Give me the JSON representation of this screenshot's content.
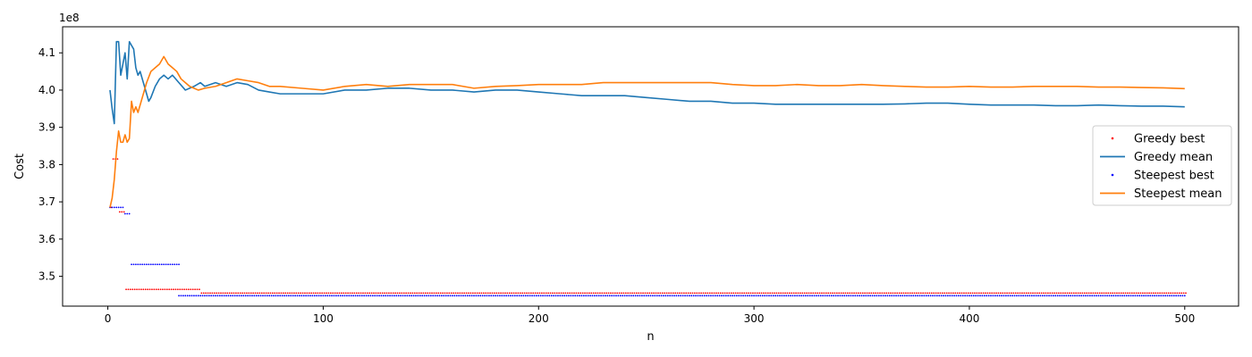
{
  "chart_data": {
    "type": "line",
    "xlabel": "n",
    "ylabel": "Cost",
    "y_offset_label": "1e8",
    "xlim": [
      -21,
      525
    ],
    "ylim": [
      3.42,
      4.17
    ],
    "x_ticks": [
      0,
      100,
      200,
      300,
      400,
      500
    ],
    "y_ticks": [
      3.5,
      3.6,
      3.7,
      3.8,
      3.9,
      4.0,
      4.1
    ],
    "grid": false,
    "legend_position": "center-right",
    "series": [
      {
        "name": "Greedy best",
        "style": "points",
        "color": "#ff0000",
        "segments": [
          {
            "x_start": 1,
            "x_end": 1,
            "y": 3.685
          },
          {
            "x_start": 2,
            "x_end": 4,
            "y": 3.815
          },
          {
            "x_start": 5,
            "x_end": 7,
            "y": 3.673
          },
          {
            "x_start": 8,
            "x_end": 42,
            "y": 3.465
          },
          {
            "x_start": 43,
            "x_end": 500,
            "y": 3.455
          }
        ]
      },
      {
        "name": "Greedy mean",
        "style": "line",
        "color": "#1f77b4",
        "points": [
          [
            1,
            4.0
          ],
          [
            2,
            3.95
          ],
          [
            3,
            3.91
          ],
          [
            4,
            4.13
          ],
          [
            5,
            4.13
          ],
          [
            6,
            4.04
          ],
          [
            7,
            4.07
          ],
          [
            8,
            4.1
          ],
          [
            9,
            4.03
          ],
          [
            10,
            4.13
          ],
          [
            11,
            4.12
          ],
          [
            12,
            4.11
          ],
          [
            13,
            4.06
          ],
          [
            14,
            4.04
          ],
          [
            15,
            4.05
          ],
          [
            16,
            4.03
          ],
          [
            17,
            4.01
          ],
          [
            18,
            3.99
          ],
          [
            19,
            3.97
          ],
          [
            20,
            3.98
          ],
          [
            22,
            4.01
          ],
          [
            24,
            4.03
          ],
          [
            26,
            4.04
          ],
          [
            28,
            4.03
          ],
          [
            30,
            4.04
          ],
          [
            33,
            4.02
          ],
          [
            36,
            4.0
          ],
          [
            40,
            4.01
          ],
          [
            43,
            4.02
          ],
          [
            45,
            4.01
          ],
          [
            50,
            4.02
          ],
          [
            55,
            4.01
          ],
          [
            60,
            4.02
          ],
          [
            65,
            4.015
          ],
          [
            70,
            4.0
          ],
          [
            75,
            3.995
          ],
          [
            80,
            3.99
          ],
          [
            90,
            3.99
          ],
          [
            100,
            3.99
          ],
          [
            110,
            4.0
          ],
          [
            120,
            4.0
          ],
          [
            130,
            4.005
          ],
          [
            140,
            4.005
          ],
          [
            150,
            4.0
          ],
          [
            160,
            4.0
          ],
          [
            170,
            3.995
          ],
          [
            180,
            4.0
          ],
          [
            190,
            4.0
          ],
          [
            200,
            3.995
          ],
          [
            210,
            3.99
          ],
          [
            220,
            3.985
          ],
          [
            230,
            3.985
          ],
          [
            240,
            3.985
          ],
          [
            250,
            3.98
          ],
          [
            260,
            3.975
          ],
          [
            270,
            3.97
          ],
          [
            280,
            3.97
          ],
          [
            290,
            3.965
          ],
          [
            300,
            3.965
          ],
          [
            310,
            3.962
          ],
          [
            320,
            3.962
          ],
          [
            330,
            3.962
          ],
          [
            340,
            3.962
          ],
          [
            350,
            3.962
          ],
          [
            360,
            3.962
          ],
          [
            370,
            3.963
          ],
          [
            380,
            3.965
          ],
          [
            390,
            3.965
          ],
          [
            400,
            3.962
          ],
          [
            410,
            3.96
          ],
          [
            420,
            3.96
          ],
          [
            430,
            3.96
          ],
          [
            440,
            3.958
          ],
          [
            450,
            3.958
          ],
          [
            460,
            3.96
          ],
          [
            470,
            3.958
          ],
          [
            480,
            3.957
          ],
          [
            490,
            3.957
          ],
          [
            500,
            3.955
          ]
        ]
      },
      {
        "name": "Steepest best",
        "style": "points",
        "color": "#0000ff",
        "segments": [
          {
            "x_start": 1,
            "x_end": 7,
            "y": 3.685
          },
          {
            "x_start": 8,
            "x_end": 10,
            "y": 3.668
          },
          {
            "x_start": 11,
            "x_end": 33,
            "y": 3.532
          },
          {
            "x_start": 33,
            "x_end": 500,
            "y": 3.448
          }
        ]
      },
      {
        "name": "Steepest mean",
        "style": "line",
        "color": "#ff7f0e",
        "points": [
          [
            1,
            3.685
          ],
          [
            2,
            3.71
          ],
          [
            3,
            3.76
          ],
          [
            4,
            3.835
          ],
          [
            5,
            3.89
          ],
          [
            6,
            3.86
          ],
          [
            7,
            3.86
          ],
          [
            8,
            3.88
          ],
          [
            9,
            3.86
          ],
          [
            10,
            3.87
          ],
          [
            11,
            3.97
          ],
          [
            12,
            3.94
          ],
          [
            13,
            3.955
          ],
          [
            14,
            3.94
          ],
          [
            16,
            3.98
          ],
          [
            18,
            4.02
          ],
          [
            20,
            4.05
          ],
          [
            22,
            4.06
          ],
          [
            24,
            4.07
          ],
          [
            26,
            4.09
          ],
          [
            28,
            4.07
          ],
          [
            30,
            4.06
          ],
          [
            32,
            4.05
          ],
          [
            34,
            4.03
          ],
          [
            36,
            4.02
          ],
          [
            38,
            4.01
          ],
          [
            40,
            4.005
          ],
          [
            42,
            4.0
          ],
          [
            45,
            4.005
          ],
          [
            50,
            4.01
          ],
          [
            55,
            4.02
          ],
          [
            60,
            4.03
          ],
          [
            65,
            4.025
          ],
          [
            70,
            4.02
          ],
          [
            75,
            4.01
          ],
          [
            80,
            4.01
          ],
          [
            90,
            4.005
          ],
          [
            100,
            4.0
          ],
          [
            110,
            4.01
          ],
          [
            120,
            4.015
          ],
          [
            130,
            4.01
          ],
          [
            140,
            4.015
          ],
          [
            150,
            4.015
          ],
          [
            160,
            4.015
          ],
          [
            170,
            4.005
          ],
          [
            180,
            4.01
          ],
          [
            190,
            4.012
          ],
          [
            200,
            4.015
          ],
          [
            210,
            4.015
          ],
          [
            220,
            4.015
          ],
          [
            230,
            4.02
          ],
          [
            240,
            4.02
          ],
          [
            250,
            4.02
          ],
          [
            260,
            4.02
          ],
          [
            270,
            4.02
          ],
          [
            280,
            4.02
          ],
          [
            290,
            4.015
          ],
          [
            300,
            4.012
          ],
          [
            310,
            4.012
          ],
          [
            320,
            4.015
          ],
          [
            330,
            4.012
          ],
          [
            340,
            4.012
          ],
          [
            350,
            4.015
          ],
          [
            360,
            4.012
          ],
          [
            370,
            4.01
          ],
          [
            380,
            4.008
          ],
          [
            390,
            4.008
          ],
          [
            400,
            4.01
          ],
          [
            410,
            4.008
          ],
          [
            420,
            4.008
          ],
          [
            430,
            4.01
          ],
          [
            440,
            4.01
          ],
          [
            450,
            4.01
          ],
          [
            460,
            4.008
          ],
          [
            470,
            4.008
          ],
          [
            480,
            4.007
          ],
          [
            490,
            4.006
          ],
          [
            500,
            4.004
          ]
        ]
      }
    ]
  }
}
